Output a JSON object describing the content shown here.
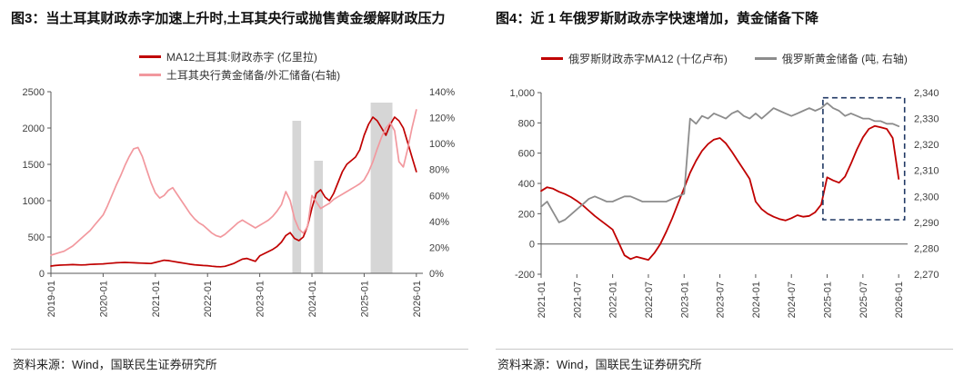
{
  "panels": {
    "left": {
      "title": "图3：当土耳其财政赤字加速上升时,土耳其央行或抛售黄金缓解财政压力",
      "source": "资料来源：Wind，国联民生证券研究所"
    },
    "right": {
      "title": "图4：近 1 年俄罗斯财政赤字快速增加，黄金储备下降",
      "source": "资料来源：Wind，国联民生证券研究所"
    }
  },
  "colors": {
    "dark_red": "#C00000",
    "pink": "#F2989E",
    "gray_series": "#8C8C8C",
    "band": "#D6D6D6",
    "axis": "#595959",
    "annotation": "#203864"
  },
  "chart_data": [
    {
      "type": "line",
      "title": "当土耳其财政赤字加速上升时,土耳其央行或抛售黄金缓解财政压力",
      "xlabel": "",
      "ylabel": "",
      "x_unit": "month",
      "x_start": "2019-01",
      "xlim": [
        0,
        85.5
      ],
      "legend_position": "top",
      "grid": false,
      "margins": {
        "l": 44,
        "r": 52,
        "t": 10,
        "b": 52
      },
      "colors": {
        "band": "#D6D6D6",
        "axis": "#595959"
      },
      "x_axis_at": 0,
      "y_left": {
        "min": 0,
        "max": 2500,
        "ticks": [
          0,
          500,
          1000,
          1500,
          2000,
          2500
        ],
        "labels": [
          "0",
          "500",
          "1000",
          "1500",
          "2000",
          "2500"
        ]
      },
      "y_right": {
        "min": 0,
        "max": 140,
        "ticks": [
          0,
          20,
          40,
          60,
          80,
          100,
          120,
          140
        ],
        "labels": [
          "0%",
          "20%",
          "40%",
          "60%",
          "80%",
          "100%",
          "120%",
          "140%"
        ]
      },
      "x_ticks": [
        {
          "i": 0,
          "label": "2019-01"
        },
        {
          "i": 12,
          "label": "2020-01"
        },
        {
          "i": 24,
          "label": "2021-01"
        },
        {
          "i": 36,
          "label": "2022-01"
        },
        {
          "i": 48,
          "label": "2023-01"
        },
        {
          "i": 60,
          "label": "2024-01"
        },
        {
          "i": 72,
          "label": "2025-01"
        },
        {
          "i": 84,
          "label": "2026-01"
        }
      ],
      "bands": [
        {
          "x0": 55.5,
          "x1": 57.5,
          "top": 2100
        },
        {
          "x0": 60.5,
          "x1": 62.5,
          "top": 1550
        },
        {
          "x0": 73.5,
          "x1": 78.5,
          "top": 2350
        }
      ],
      "series": [
        {
          "name": "MA12土耳其:财政赤字 (亿里拉)",
          "axis": "left",
          "color": "#C00000",
          "width": 1.7,
          "data_name": "turkey-fiscal-deficit-line",
          "values": [
            100,
            108,
            112,
            115,
            118,
            120,
            118,
            115,
            118,
            122,
            125,
            128,
            130,
            135,
            140,
            145,
            148,
            150,
            148,
            145,
            142,
            140,
            138,
            135,
            150,
            165,
            180,
            175,
            165,
            155,
            145,
            135,
            125,
            118,
            112,
            108,
            105,
            98,
            92,
            90,
            96,
            115,
            135,
            165,
            195,
            205,
            185,
            165,
            240,
            270,
            300,
            330,
            370,
            430,
            520,
            560,
            480,
            450,
            500,
            650,
            900,
            1100,
            1150,
            1050,
            1000,
            1100,
            1250,
            1400,
            1500,
            1550,
            1600,
            1700,
            1900,
            2050,
            2150,
            2100,
            2000,
            1900,
            2050,
            2150,
            2100,
            2000,
            1800,
            1600,
            1400
          ]
        },
        {
          "name": "土耳其央行黄金储备/外汇储备(右轴)",
          "axis": "right",
          "color": "#F2989E",
          "width": 1.7,
          "data_name": "turkey-gold-fx-reserve-ratio-line",
          "values": [
            14,
            15,
            16,
            17,
            19,
            21,
            24,
            27,
            30,
            33,
            37,
            41,
            45,
            52,
            60,
            68,
            75,
            83,
            90,
            96,
            97,
            90,
            80,
            70,
            62,
            58,
            60,
            64,
            66,
            61,
            56,
            51,
            46,
            42,
            39,
            37,
            34,
            31,
            29,
            28,
            30,
            33,
            36,
            39,
            41,
            39,
            37,
            35,
            37,
            39,
            41,
            44,
            48,
            53,
            63,
            56,
            42,
            34,
            31,
            36,
            60,
            55,
            50,
            52,
            54,
            57,
            59,
            61,
            63,
            65,
            67,
            69,
            72,
            78,
            86,
            96,
            105,
            112,
            116,
            110,
            86,
            82,
            96,
            112,
            126
          ]
        }
      ]
    },
    {
      "type": "line",
      "title": "近 1 年俄罗斯财政赤字快速增加，黄金储备下降",
      "xlabel": "",
      "ylabel": "",
      "x_unit": "month",
      "x_start": "2021-01",
      "xlim": [
        0,
        61.5
      ],
      "legend_position": "top",
      "grid": false,
      "margins": {
        "l": 50,
        "r": 52,
        "t": 10,
        "b": 52
      },
      "colors": {
        "band": "#D6D6D6",
        "axis": "#595959"
      },
      "x_axis_at": 0,
      "y_left": {
        "min": -200,
        "max": 1000,
        "ticks": [
          -200,
          0,
          200,
          400,
          600,
          800,
          1000
        ],
        "labels": [
          "-200",
          "0",
          "200",
          "400",
          "600",
          "800",
          "1,000"
        ]
      },
      "y_right": {
        "min": 2270,
        "max": 2340,
        "ticks": [
          2270,
          2280,
          2290,
          2300,
          2310,
          2320,
          2330,
          2340
        ],
        "labels": [
          "2,270",
          "2,280",
          "2,290",
          "2,300",
          "2,310",
          "2,320",
          "2,330",
          "2,340"
        ]
      },
      "x_ticks": [
        {
          "i": 0,
          "label": "2021-01"
        },
        {
          "i": 6,
          "label": "2021-07"
        },
        {
          "i": 12,
          "label": "2022-01"
        },
        {
          "i": 18,
          "label": "2022-07"
        },
        {
          "i": 24,
          "label": "2023-01"
        },
        {
          "i": 30,
          "label": "2023-07"
        },
        {
          "i": 36,
          "label": "2024-01"
        },
        {
          "i": 42,
          "label": "2024-07"
        },
        {
          "i": 48,
          "label": "2025-01"
        },
        {
          "i": 54,
          "label": "2025-07"
        },
        {
          "i": 60,
          "label": "2026-01"
        }
      ],
      "annotation_rect": {
        "x0": 47.3,
        "x1": 61.0,
        "y0": 2291,
        "y1": 2338,
        "color": "#203864"
      },
      "series": [
        {
          "name": "俄罗斯财政赤字MA12 (十亿卢布)",
          "axis": "left",
          "color": "#C00000",
          "width": 1.8,
          "data_name": "russia-fiscal-deficit-line",
          "values": [
            350,
            375,
            365,
            345,
            330,
            310,
            285,
            255,
            220,
            185,
            155,
            125,
            95,
            10,
            -75,
            -100,
            -85,
            -95,
            -105,
            -60,
            0,
            80,
            170,
            270,
            370,
            470,
            550,
            615,
            660,
            690,
            700,
            665,
            610,
            550,
            490,
            430,
            280,
            230,
            200,
            180,
            165,
            155,
            170,
            190,
            180,
            185,
            210,
            260,
            440,
            420,
            405,
            445,
            530,
            625,
            705,
            760,
            780,
            770,
            760,
            700,
            430
          ]
        },
        {
          "name": "俄罗斯黄金储备 (吨, 右轴)",
          "axis": "right",
          "color": "#8C8C8C",
          "width": 1.8,
          "data_name": "russia-gold-reserves-line",
          "values": [
            2296,
            2298,
            2294,
            2290,
            2291,
            2293,
            2295,
            2297,
            2299,
            2300,
            2299,
            2298,
            2298,
            2299,
            2300,
            2300,
            2299,
            2298,
            2298,
            2298,
            2298,
            2298,
            2299,
            2300,
            2301,
            2330,
            2328,
            2331,
            2330,
            2332,
            2331,
            2330,
            2332,
            2333,
            2331,
            2330,
            2332,
            2330,
            2332,
            2334,
            2333,
            2332,
            2331,
            2332,
            2333,
            2334,
            2333,
            2334,
            2336,
            2334,
            2333,
            2331,
            2332,
            2331,
            2330,
            2330,
            2329,
            2329,
            2328,
            2328,
            2327
          ]
        }
      ]
    }
  ]
}
